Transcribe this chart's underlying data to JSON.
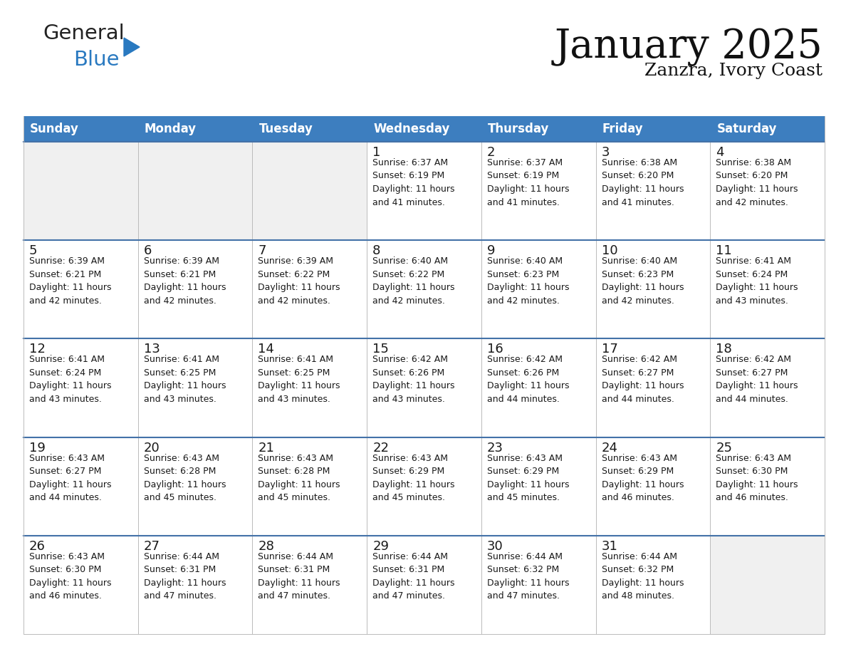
{
  "title": "January 2025",
  "subtitle": "Zanzra, Ivory Coast",
  "days_of_week": [
    "Sunday",
    "Monday",
    "Tuesday",
    "Wednesday",
    "Thursday",
    "Friday",
    "Saturday"
  ],
  "header_bg": "#3d7ebf",
  "header_text": "#ffffff",
  "cell_bg_empty": "#f0f0f0",
  "cell_bg_filled": "#ffffff",
  "cell_text": "#1a1a1a",
  "divider_color": "#4472a8",
  "grid_color": "#bbbbbb",
  "calendar": [
    [
      {
        "day": null,
        "info": null
      },
      {
        "day": null,
        "info": null
      },
      {
        "day": null,
        "info": null
      },
      {
        "day": 1,
        "info": "Sunrise: 6:37 AM\nSunset: 6:19 PM\nDaylight: 11 hours\nand 41 minutes."
      },
      {
        "day": 2,
        "info": "Sunrise: 6:37 AM\nSunset: 6:19 PM\nDaylight: 11 hours\nand 41 minutes."
      },
      {
        "day": 3,
        "info": "Sunrise: 6:38 AM\nSunset: 6:20 PM\nDaylight: 11 hours\nand 41 minutes."
      },
      {
        "day": 4,
        "info": "Sunrise: 6:38 AM\nSunset: 6:20 PM\nDaylight: 11 hours\nand 42 minutes."
      }
    ],
    [
      {
        "day": 5,
        "info": "Sunrise: 6:39 AM\nSunset: 6:21 PM\nDaylight: 11 hours\nand 42 minutes."
      },
      {
        "day": 6,
        "info": "Sunrise: 6:39 AM\nSunset: 6:21 PM\nDaylight: 11 hours\nand 42 minutes."
      },
      {
        "day": 7,
        "info": "Sunrise: 6:39 AM\nSunset: 6:22 PM\nDaylight: 11 hours\nand 42 minutes."
      },
      {
        "day": 8,
        "info": "Sunrise: 6:40 AM\nSunset: 6:22 PM\nDaylight: 11 hours\nand 42 minutes."
      },
      {
        "day": 9,
        "info": "Sunrise: 6:40 AM\nSunset: 6:23 PM\nDaylight: 11 hours\nand 42 minutes."
      },
      {
        "day": 10,
        "info": "Sunrise: 6:40 AM\nSunset: 6:23 PM\nDaylight: 11 hours\nand 42 minutes."
      },
      {
        "day": 11,
        "info": "Sunrise: 6:41 AM\nSunset: 6:24 PM\nDaylight: 11 hours\nand 43 minutes."
      }
    ],
    [
      {
        "day": 12,
        "info": "Sunrise: 6:41 AM\nSunset: 6:24 PM\nDaylight: 11 hours\nand 43 minutes."
      },
      {
        "day": 13,
        "info": "Sunrise: 6:41 AM\nSunset: 6:25 PM\nDaylight: 11 hours\nand 43 minutes."
      },
      {
        "day": 14,
        "info": "Sunrise: 6:41 AM\nSunset: 6:25 PM\nDaylight: 11 hours\nand 43 minutes."
      },
      {
        "day": 15,
        "info": "Sunrise: 6:42 AM\nSunset: 6:26 PM\nDaylight: 11 hours\nand 43 minutes."
      },
      {
        "day": 16,
        "info": "Sunrise: 6:42 AM\nSunset: 6:26 PM\nDaylight: 11 hours\nand 44 minutes."
      },
      {
        "day": 17,
        "info": "Sunrise: 6:42 AM\nSunset: 6:27 PM\nDaylight: 11 hours\nand 44 minutes."
      },
      {
        "day": 18,
        "info": "Sunrise: 6:42 AM\nSunset: 6:27 PM\nDaylight: 11 hours\nand 44 minutes."
      }
    ],
    [
      {
        "day": 19,
        "info": "Sunrise: 6:43 AM\nSunset: 6:27 PM\nDaylight: 11 hours\nand 44 minutes."
      },
      {
        "day": 20,
        "info": "Sunrise: 6:43 AM\nSunset: 6:28 PM\nDaylight: 11 hours\nand 45 minutes."
      },
      {
        "day": 21,
        "info": "Sunrise: 6:43 AM\nSunset: 6:28 PM\nDaylight: 11 hours\nand 45 minutes."
      },
      {
        "day": 22,
        "info": "Sunrise: 6:43 AM\nSunset: 6:29 PM\nDaylight: 11 hours\nand 45 minutes."
      },
      {
        "day": 23,
        "info": "Sunrise: 6:43 AM\nSunset: 6:29 PM\nDaylight: 11 hours\nand 45 minutes."
      },
      {
        "day": 24,
        "info": "Sunrise: 6:43 AM\nSunset: 6:29 PM\nDaylight: 11 hours\nand 46 minutes."
      },
      {
        "day": 25,
        "info": "Sunrise: 6:43 AM\nSunset: 6:30 PM\nDaylight: 11 hours\nand 46 minutes."
      }
    ],
    [
      {
        "day": 26,
        "info": "Sunrise: 6:43 AM\nSunset: 6:30 PM\nDaylight: 11 hours\nand 46 minutes."
      },
      {
        "day": 27,
        "info": "Sunrise: 6:44 AM\nSunset: 6:31 PM\nDaylight: 11 hours\nand 47 minutes."
      },
      {
        "day": 28,
        "info": "Sunrise: 6:44 AM\nSunset: 6:31 PM\nDaylight: 11 hours\nand 47 minutes."
      },
      {
        "day": 29,
        "info": "Sunrise: 6:44 AM\nSunset: 6:31 PM\nDaylight: 11 hours\nand 47 minutes."
      },
      {
        "day": 30,
        "info": "Sunrise: 6:44 AM\nSunset: 6:32 PM\nDaylight: 11 hours\nand 47 minutes."
      },
      {
        "day": 31,
        "info": "Sunrise: 6:44 AM\nSunset: 6:32 PM\nDaylight: 11 hours\nand 48 minutes."
      },
      {
        "day": null,
        "info": null
      }
    ]
  ],
  "logo_general_color": "#222222",
  "logo_blue_color": "#2979c0",
  "logo_triangle_color": "#2979c0",
  "title_fontsize": 40,
  "subtitle_fontsize": 18,
  "header_fontsize": 12,
  "day_num_fontsize": 13,
  "info_fontsize": 9
}
